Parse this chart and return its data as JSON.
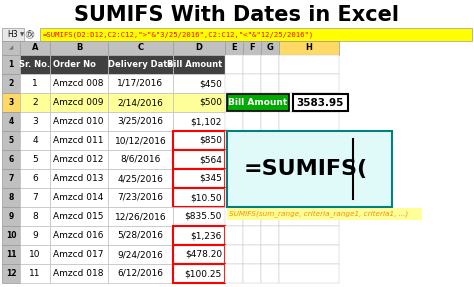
{
  "title": "SUMIFS With Dates in Excel",
  "formula_bar_cell": "H3",
  "formula_bar_fx": "fx",
  "formula_bar_text": "=SUMIFS(D2:D12,C2:C12,\">\"&\"3/25/2016\",C2:C12,\"<\"&\"12/25/2016\")",
  "col_headers": [
    "A",
    "B",
    "C",
    "D",
    "E",
    "F",
    "G",
    "H"
  ],
  "table_headers": [
    "Sr. No.",
    "Order No",
    "Delivery Date",
    "Bill Amount"
  ],
  "table_data": [
    [
      "1",
      "Amzcd 008",
      "1/17/2016",
      "$450"
    ],
    [
      "2",
      "Amzcd 009",
      "2/14/2016",
      "$500"
    ],
    [
      "3",
      "Amzcd 010",
      "3/25/2016",
      "$1,102"
    ],
    [
      "4",
      "Amzcd 011",
      "10/12/2016",
      "$850"
    ],
    [
      "5",
      "Amzcd 012",
      "8/6/2016",
      "$564"
    ],
    [
      "6",
      "Amzcd 013",
      "4/25/2016",
      "$345"
    ],
    [
      "7",
      "Amzcd 014",
      "7/23/2016",
      "$10.50"
    ],
    [
      "8",
      "Amzcd 015",
      "12/26/2016",
      "$835.50"
    ],
    [
      "9",
      "Amzcd 016",
      "5/28/2016",
      "$1,236"
    ],
    [
      "10",
      "Amzcd 017",
      "9/24/2016",
      "$478.20"
    ],
    [
      "11",
      "Amzcd 018",
      "6/12/2016",
      "$100.25"
    ]
  ],
  "red_outlined_row_indices": [
    3,
    4,
    5,
    6,
    8,
    9,
    10,
    11
  ],
  "row3_yellow_index": 2,
  "bill_amount_label": "Bill Amount",
  "bill_amount_value": "3583.95",
  "sumifs_display": "=SUMIFS(",
  "sumifs_hint": "SUMIFS(sum_range, criteria_range1, criteria1, ...)",
  "bg_color": "#FFFFFF",
  "title_color": "#000000",
  "header_bg": "#404040",
  "header_fg": "#FFFFFF",
  "row_num_col_bg": "#C0C0C0",
  "col_hdr_bg": "#C0C0C0",
  "h_col_hdr_bg": "#FFD966",
  "row3_bg": "#FFFF99",
  "row3_num_bg": "#FFD966",
  "cell_bg": "#FFFFFF",
  "cell_border": "#C0C0C0",
  "red_box_color": "#FF0000",
  "green_label_bg": "#00AA00",
  "green_label_fg": "#FFFFFF",
  "value_box_bg": "#FFFFFF",
  "value_box_border": "#000000",
  "sumifs_box_bg": "#E0FAFA",
  "sumifs_box_border": "#008080",
  "sumifs_text_color": "#000000",
  "sumifs_hint_color": "#FF8C00",
  "sumifs_hint_bg": "#FFFF99",
  "formula_text_color": "#FF0000",
  "formula_bg": "#FFFF00"
}
